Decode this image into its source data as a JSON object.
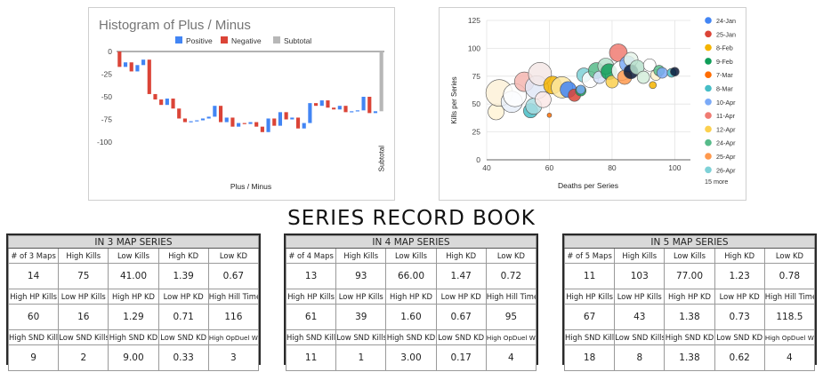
{
  "histogram": {
    "chart_data": {
      "type": "bar",
      "title": "Histogram of Plus / Minus",
      "xlabel": "Plus / Minus",
      "ylabel": "",
      "ylim": [
        -100,
        0
      ],
      "yticks": [
        0,
        -25,
        -50,
        -75,
        -100
      ],
      "legend": [
        "Positive",
        "Negative",
        "Subtotal"
      ],
      "legend_position": "top",
      "grid": false,
      "colors": {
        "Positive": "#4285f4",
        "Negative": "#db4437",
        "Subtotal": "#b7b7b7"
      },
      "waterfall_steps": [
        {
          "start": 0,
          "end": -17
        },
        {
          "start": -17,
          "end": -12
        },
        {
          "start": -12,
          "end": -22
        },
        {
          "start": -22,
          "end": -15
        },
        {
          "start": -15,
          "end": -9
        },
        {
          "start": -9,
          "end": -47
        },
        {
          "start": -47,
          "end": -53
        },
        {
          "start": -53,
          "end": -59
        },
        {
          "start": -59,
          "end": -52
        },
        {
          "start": -52,
          "end": -63
        },
        {
          "start": -63,
          "end": -74
        },
        {
          "start": -74,
          "end": -78
        },
        {
          "start": -78,
          "end": -77
        },
        {
          "start": -77,
          "end": -76
        },
        {
          "start": -76,
          "end": -74
        },
        {
          "start": -74,
          "end": -72
        },
        {
          "start": -72,
          "end": -60
        },
        {
          "start": -60,
          "end": -78
        },
        {
          "start": -78,
          "end": -73
        },
        {
          "start": -73,
          "end": -83
        },
        {
          "start": -83,
          "end": -79
        },
        {
          "start": -79,
          "end": -80
        },
        {
          "start": -80,
          "end": -78
        },
        {
          "start": -78,
          "end": -83
        },
        {
          "start": -83,
          "end": -89
        },
        {
          "start": -89,
          "end": -74
        },
        {
          "start": -74,
          "end": -82
        },
        {
          "start": -82,
          "end": -67
        },
        {
          "start": -67,
          "end": -75
        },
        {
          "start": -75,
          "end": -73
        },
        {
          "start": -73,
          "end": -85
        },
        {
          "start": -85,
          "end": -79
        },
        {
          "start": -79,
          "end": -57
        },
        {
          "start": -57,
          "end": -60
        },
        {
          "start": -60,
          "end": -54
        },
        {
          "start": -54,
          "end": -62
        },
        {
          "start": -62,
          "end": -64
        },
        {
          "start": -64,
          "end": -60
        },
        {
          "start": -60,
          "end": -67
        },
        {
          "start": -67,
          "end": -66
        },
        {
          "start": -66,
          "end": -65
        },
        {
          "start": -65,
          "end": -50
        },
        {
          "start": -50,
          "end": -68
        },
        {
          "start": -68,
          "end": -66
        }
      ],
      "subtotal": {
        "label": "Subtotal",
        "value": -66
      }
    }
  },
  "bubble": {
    "chart_data": {
      "type": "scatter",
      "title": "",
      "xlabel": "Deaths per Series",
      "ylabel": "Kills per Series",
      "xlim": [
        40,
        105
      ],
      "ylim": [
        0,
        125
      ],
      "xticks": [
        40,
        60,
        80,
        100
      ],
      "yticks": [
        0,
        25,
        50,
        75,
        100,
        125
      ],
      "grid": true,
      "legend_position": "right",
      "legend": [
        {
          "name": "24-Jan",
          "color": "#4285f4"
        },
        {
          "name": "25-Jan",
          "color": "#db4437"
        },
        {
          "name": "8-Feb",
          "color": "#f4b400"
        },
        {
          "name": "9-Feb",
          "color": "#0f9d58"
        },
        {
          "name": "7-Mar",
          "color": "#ff6d01"
        },
        {
          "name": "8-Mar",
          "color": "#46bdc6"
        },
        {
          "name": "10-Apr",
          "color": "#7baaf7"
        },
        {
          "name": "11-Apr",
          "color": "#f07b72"
        },
        {
          "name": "12-Apr",
          "color": "#fcd04f"
        },
        {
          "name": "24-Apr",
          "color": "#57bb8a"
        },
        {
          "name": "25-Apr",
          "color": "#ff994d"
        },
        {
          "name": "26-Apr",
          "color": "#7ed1d7"
        }
      ],
      "legend_more": "15 more",
      "points": [
        {
          "x": 43,
          "y": 43,
          "size": 9,
          "color": "#fff3d6"
        },
        {
          "x": 44,
          "y": 60,
          "size": 15,
          "color": "#fdf1d8"
        },
        {
          "x": 48,
          "y": 52,
          "size": 12,
          "color": "#e8eef9"
        },
        {
          "x": 49,
          "y": 58,
          "size": 13,
          "color": "#ffffff"
        },
        {
          "x": 52,
          "y": 70,
          "size": 11,
          "color": "#f4b6b0"
        },
        {
          "x": 54,
          "y": 44,
          "size": 8,
          "color": "#46bdc6"
        },
        {
          "x": 55,
          "y": 48,
          "size": 9,
          "color": "#a8dce0"
        },
        {
          "x": 56,
          "y": 65,
          "size": 13,
          "color": "#e0e8f7"
        },
        {
          "x": 57,
          "y": 77,
          "size": 13,
          "color": "#f5e7e6"
        },
        {
          "x": 58,
          "y": 54,
          "size": 9,
          "color": "#fbe9e7"
        },
        {
          "x": 60,
          "y": 40,
          "size": 2.5,
          "color": "#ff6d01"
        },
        {
          "x": 61,
          "y": 67,
          "size": 10,
          "color": "#f4b400"
        },
        {
          "x": 64,
          "y": 65,
          "size": 12,
          "color": "#fde7a3"
        },
        {
          "x": 66,
          "y": 63,
          "size": 9,
          "color": "#4285f4"
        },
        {
          "x": 68,
          "y": 58,
          "size": 7,
          "color": "#db4437"
        },
        {
          "x": 70,
          "y": 62,
          "size": 6,
          "color": "#0f9d58"
        },
        {
          "x": 70,
          "y": 63,
          "size": 5,
          "color": "#7baaf7"
        },
        {
          "x": 71,
          "y": 76,
          "size": 8,
          "color": "#7ed1d7"
        },
        {
          "x": 73,
          "y": 72,
          "size": 9,
          "color": "#ffffff"
        },
        {
          "x": 75,
          "y": 80,
          "size": 9,
          "color": "#57bb8a"
        },
        {
          "x": 76,
          "y": 74,
          "size": 7,
          "color": "#d7e3fb"
        },
        {
          "x": 78,
          "y": 84,
          "size": 9,
          "color": "#b7e1cd"
        },
        {
          "x": 79,
          "y": 79,
          "size": 9,
          "color": "#0f9d58"
        },
        {
          "x": 80,
          "y": 70,
          "size": 7,
          "color": "#fcd04f"
        },
        {
          "x": 82,
          "y": 96,
          "size": 10,
          "color": "#f07b72"
        },
        {
          "x": 83,
          "y": 80,
          "size": 11,
          "color": "#ffffff"
        },
        {
          "x": 84,
          "y": 74,
          "size": 8,
          "color": "#ff994d"
        },
        {
          "x": 85,
          "y": 86,
          "size": 9,
          "color": "#7baaf7"
        },
        {
          "x": 86,
          "y": 90,
          "size": 8,
          "color": "#e6f4ea"
        },
        {
          "x": 86,
          "y": 79,
          "size": 8,
          "color": "#0b1a3a"
        },
        {
          "x": 88,
          "y": 83,
          "size": 8,
          "color": "#b7e1cd"
        },
        {
          "x": 90,
          "y": 74,
          "size": 7,
          "color": "#d4edda"
        },
        {
          "x": 92,
          "y": 85,
          "size": 7,
          "color": "#ffffff"
        },
        {
          "x": 93,
          "y": 67,
          "size": 4,
          "color": "#f4b400"
        },
        {
          "x": 94,
          "y": 76,
          "size": 6,
          "color": "#fff2cc"
        },
        {
          "x": 95,
          "y": 80,
          "size": 6,
          "color": "#57bb8a"
        },
        {
          "x": 96,
          "y": 78,
          "size": 6,
          "color": "#7baaf7"
        },
        {
          "x": 99,
          "y": 78,
          "size": 5,
          "color": "#46bdc6"
        },
        {
          "x": 100,
          "y": 79,
          "size": 5,
          "color": "#0b1a3a"
        }
      ]
    }
  },
  "record_book": {
    "title": "SERIES RECORD BOOK",
    "tables": [
      {
        "title": "IN 3 MAP SERIES",
        "rows": [
          {
            "headers": [
              "# of 3 Maps",
              "High Kills",
              "Low Kills",
              "High KD",
              "Low KD"
            ],
            "values": [
              "14",
              "75",
              "41.00",
              "1.39",
              "0.67"
            ]
          },
          {
            "headers": [
              "High HP Kills",
              "Low HP Kills",
              "High HP KD",
              "Low HP KD",
              "High Hill Time"
            ],
            "values": [
              "60",
              "16",
              "1.29",
              "0.71",
              "116"
            ]
          },
          {
            "headers": [
              "High SND Kills",
              "Low SND Kills",
              "High SND KD",
              "Low SND KD",
              "High OpDuel W"
            ],
            "values": [
              "9",
              "2",
              "9.00",
              "0.33",
              "3"
            ]
          }
        ]
      },
      {
        "title": "IN 4 MAP SERIES",
        "rows": [
          {
            "headers": [
              "# of 4 Maps",
              "High Kills",
              "Low Kills",
              "High KD",
              "Low KD"
            ],
            "values": [
              "13",
              "93",
              "66.00",
              "1.47",
              "0.72"
            ]
          },
          {
            "headers": [
              "High HP Kills",
              "Low HP Kills",
              "High HP KD",
              "Low HP KD",
              "High Hill Time"
            ],
            "values": [
              "61",
              "39",
              "1.60",
              "0.67",
              "95"
            ]
          },
          {
            "headers": [
              "High SND Kills",
              "Low SND Kills",
              "High SND KD",
              "Low SND KD",
              "High OpDuel W"
            ],
            "values": [
              "11",
              "1",
              "3.00",
              "0.17",
              "4"
            ]
          }
        ]
      },
      {
        "title": "IN 5 MAP SERIES",
        "rows": [
          {
            "headers": [
              "# of 5 Maps",
              "High Kills",
              "Low Kills",
              "High KD",
              "Low KD"
            ],
            "values": [
              "11",
              "103",
              "77.00",
              "1.23",
              "0.78"
            ]
          },
          {
            "headers": [
              "High HP Kills",
              "Low HP Kills",
              "High HP KD",
              "Low HP KD",
              "High Hill Time"
            ],
            "values": [
              "67",
              "43",
              "1.38",
              "0.73",
              "118.5"
            ]
          },
          {
            "headers": [
              "High SND Kills",
              "Low SND Kills",
              "High SND KD",
              "Low SND KD",
              "High OpDuel W"
            ],
            "values": [
              "18",
              "8",
              "1.38",
              "0.62",
              "4"
            ]
          }
        ]
      }
    ]
  }
}
